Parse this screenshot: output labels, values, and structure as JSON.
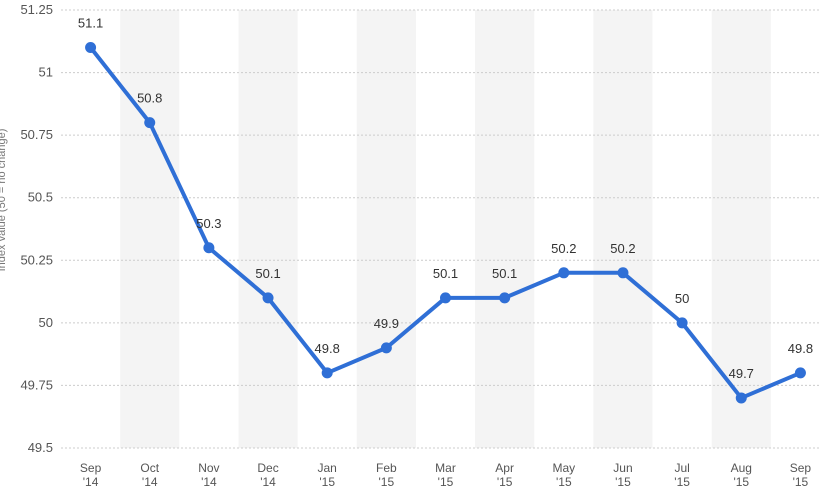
{
  "chart_data": {
    "type": "line",
    "title": "",
    "xlabel": "",
    "ylabel": "Index value (50 = no change)",
    "ylim": [
      49.5,
      51.25
    ],
    "yticks": [
      49.5,
      49.75,
      50,
      50.25,
      50.5,
      50.75,
      51,
      51.25
    ],
    "ytick_labels": [
      "49.5",
      "49.75",
      "50",
      "50.25",
      "50.5",
      "50.75",
      "51",
      "51.25"
    ],
    "categories": [
      [
        "Sep",
        "'14"
      ],
      [
        "Oct",
        "'14"
      ],
      [
        "Nov",
        "'14"
      ],
      [
        "Dec",
        "'14"
      ],
      [
        "Jan",
        "'15"
      ],
      [
        "Feb",
        "'15"
      ],
      [
        "Mar",
        "'15"
      ],
      [
        "Apr",
        "'15"
      ],
      [
        "May",
        "'15"
      ],
      [
        "Jun",
        "'15"
      ],
      [
        "Jul",
        "'15"
      ],
      [
        "Aug",
        "'15"
      ],
      [
        "Sep",
        "'15"
      ]
    ],
    "series": [
      {
        "values": [
          51.1,
          50.8,
          50.3,
          50.1,
          49.8,
          49.9,
          50.1,
          50.1,
          50.2,
          50.2,
          50,
          49.7,
          49.8
        ],
        "labels": [
          "51.1",
          "50.8",
          "50.3",
          "50.1",
          "49.8",
          "49.9",
          "50.1",
          "50.1",
          "50.2",
          "50.2",
          "50",
          "49.7",
          "49.8"
        ]
      }
    ],
    "grid": true,
    "legend": "none",
    "colors": {
      "line": "#2f6fd6",
      "band": "#f4f4f4",
      "grid": "#cccccc"
    }
  }
}
